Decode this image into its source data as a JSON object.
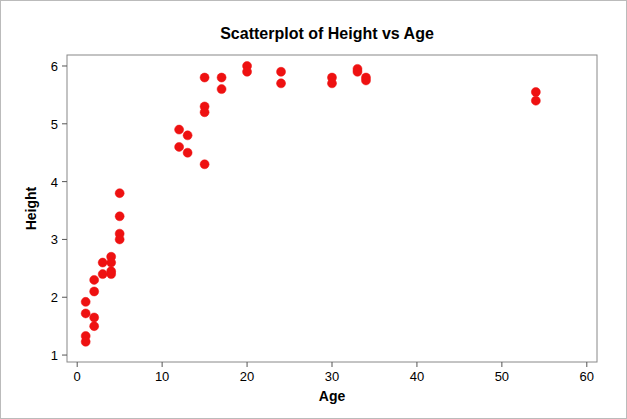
{
  "chart_data": {
    "type": "scatter",
    "title": "Scatterplot of Height vs Age",
    "x_label": "Age",
    "y_label": "Height",
    "x": [
      1,
      1,
      1,
      1,
      2,
      2,
      2,
      2,
      3,
      3,
      4,
      4,
      4,
      4,
      5,
      5,
      5,
      5,
      12,
      12,
      13,
      13,
      15,
      15,
      15,
      15,
      17,
      17,
      20,
      20,
      24,
      24,
      30,
      30,
      33,
      33,
      34,
      34,
      54,
      54
    ],
    "values": [
      1.92,
      1.72,
      1.33,
      1.23,
      2.3,
      2.1,
      1.65,
      1.5,
      2.6,
      2.4,
      2.7,
      2.6,
      2.45,
      2.4,
      3.8,
      3.4,
      3.1,
      3.0,
      4.9,
      4.6,
      4.8,
      4.5,
      5.8,
      5.3,
      5.2,
      4.3,
      5.8,
      5.6,
      6.0,
      5.9,
      5.9,
      5.7,
      5.8,
      5.7,
      5.95,
      5.9,
      5.8,
      5.75,
      5.55,
      5.4
    ],
    "color": "#ee1111",
    "marker": "circle",
    "xlim": [
      -1.2,
      61.2
    ],
    "xticks": [
      0,
      10,
      20,
      30,
      40,
      50,
      60
    ],
    "ylim": [
      0.88,
      6.19
    ],
    "yticks": [
      1,
      2,
      3,
      4,
      5,
      6
    ],
    "grid": false
  }
}
